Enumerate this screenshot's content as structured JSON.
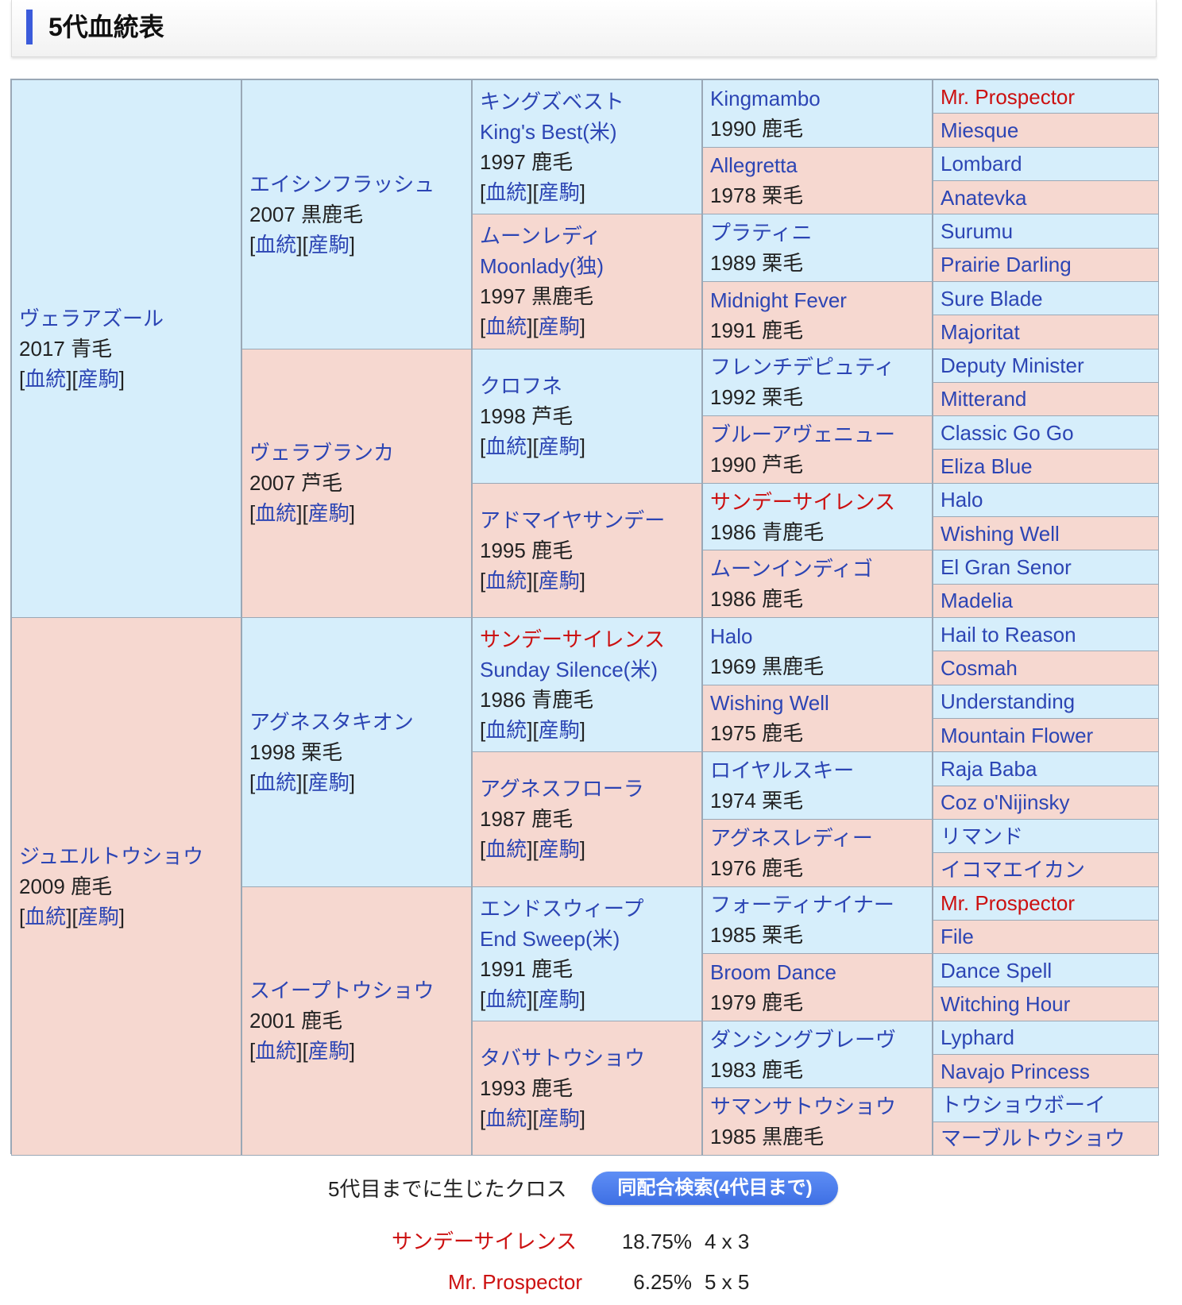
{
  "section_title": "5代血統表",
  "link_pedigree": "血統",
  "link_progeny": "産駒",
  "gen1": [
    {
      "name": "ヴェラアズール",
      "info": "2017 青毛"
    },
    {
      "name": "ジュエルトウショウ",
      "info": "2009 鹿毛"
    }
  ],
  "gen2": [
    {
      "name": "エイシンフラッシュ",
      "info": "2007 黒鹿毛"
    },
    {
      "name": "ヴェラブランカ",
      "info": "2007 芦毛"
    },
    {
      "name": "アグネスタキオン",
      "info": "1998 栗毛"
    },
    {
      "name": "スイープトウショウ",
      "info": "2001 鹿毛"
    }
  ],
  "gen3": [
    {
      "name": "キングズベスト",
      "en": "King's Best(米)",
      "info": "1997 鹿毛"
    },
    {
      "name": "ムーンレディ",
      "en": "Moonlady(独)",
      "info": "1997 黒鹿毛"
    },
    {
      "name": "クロフネ",
      "info": "1998 芦毛"
    },
    {
      "name": "アドマイヤサンデー",
      "info": "1995 鹿毛"
    },
    {
      "name": "サンデーサイレンス",
      "en": "Sunday Silence(米)",
      "info": "1986 青鹿毛"
    },
    {
      "name": "アグネスフローラ",
      "info": "1987 鹿毛"
    },
    {
      "name": "エンドスウィープ",
      "en": "End Sweep(米)",
      "info": "1991 鹿毛"
    },
    {
      "name": "タバサトウショウ",
      "info": "1993 鹿毛"
    }
  ],
  "gen4": [
    {
      "name": "Kingmambo",
      "info": "1990 鹿毛"
    },
    {
      "name": "Allegretta",
      "info": "1978 栗毛"
    },
    {
      "name": "プラティニ",
      "info": "1989 栗毛"
    },
    {
      "name": "Midnight Fever",
      "info": "1991 鹿毛"
    },
    {
      "name": "フレンチデピュティ",
      "info": "1992 栗毛"
    },
    {
      "name": "ブルーアヴェニュー",
      "info": "1990 芦毛"
    },
    {
      "name": "サンデーサイレンス",
      "info": "1986 青鹿毛"
    },
    {
      "name": "ムーンインディゴ",
      "info": "1986 鹿毛"
    },
    {
      "name": "Halo",
      "info": "1969 黒鹿毛"
    },
    {
      "name": "Wishing Well",
      "info": "1975 鹿毛"
    },
    {
      "name": "ロイヤルスキー",
      "info": "1974 栗毛"
    },
    {
      "name": "アグネスレディー",
      "info": "1976 鹿毛"
    },
    {
      "name": "フォーティナイナー",
      "info": "1985 栗毛"
    },
    {
      "name": "Broom Dance",
      "info": "1979 鹿毛"
    },
    {
      "name": "ダンシングブレーヴ",
      "info": "1983 鹿毛"
    },
    {
      "name": "サマンサトウショウ",
      "info": "1985 黒鹿毛"
    }
  ],
  "gen5": [
    "Mr. Prospector",
    "Miesque",
    "Lombard",
    "Anatevka",
    "Surumu",
    "Prairie Darling",
    "Sure Blade",
    "Majoritat",
    "Deputy Minister",
    "Mitterand",
    "Classic Go Go",
    "Eliza Blue",
    "Halo",
    "Wishing Well",
    "El Gran Senor",
    "Madelia",
    "Hail to Reason",
    "Cosmah",
    "Understanding",
    "Mountain Flower",
    "Raja Baba",
    "Coz o'Nijinsky",
    "リマンド",
    "イコマエイカン",
    "Mr. Prospector",
    "File",
    "Dance Spell",
    "Witching Hour",
    "Lyphard",
    "Navajo Princess",
    "トウショウボーイ",
    "マーブルトウショウ"
  ],
  "cross_colors": {
    "highlight": "#cc1010",
    "link": "#2c45b4",
    "sire_bg": "#d6eefb",
    "dam_bg": "#f6d8d0"
  },
  "crosses": {
    "title": "5代目までに生じたクロス",
    "button": "同配合検索(4代目まで)",
    "rows": [
      {
        "name": "サンデーサイレンス",
        "pct": "18.75%",
        "gen": "4 x 3"
      },
      {
        "name": "Mr. Prospector",
        "pct": "6.25%",
        "gen": "5 x 5"
      }
    ]
  }
}
